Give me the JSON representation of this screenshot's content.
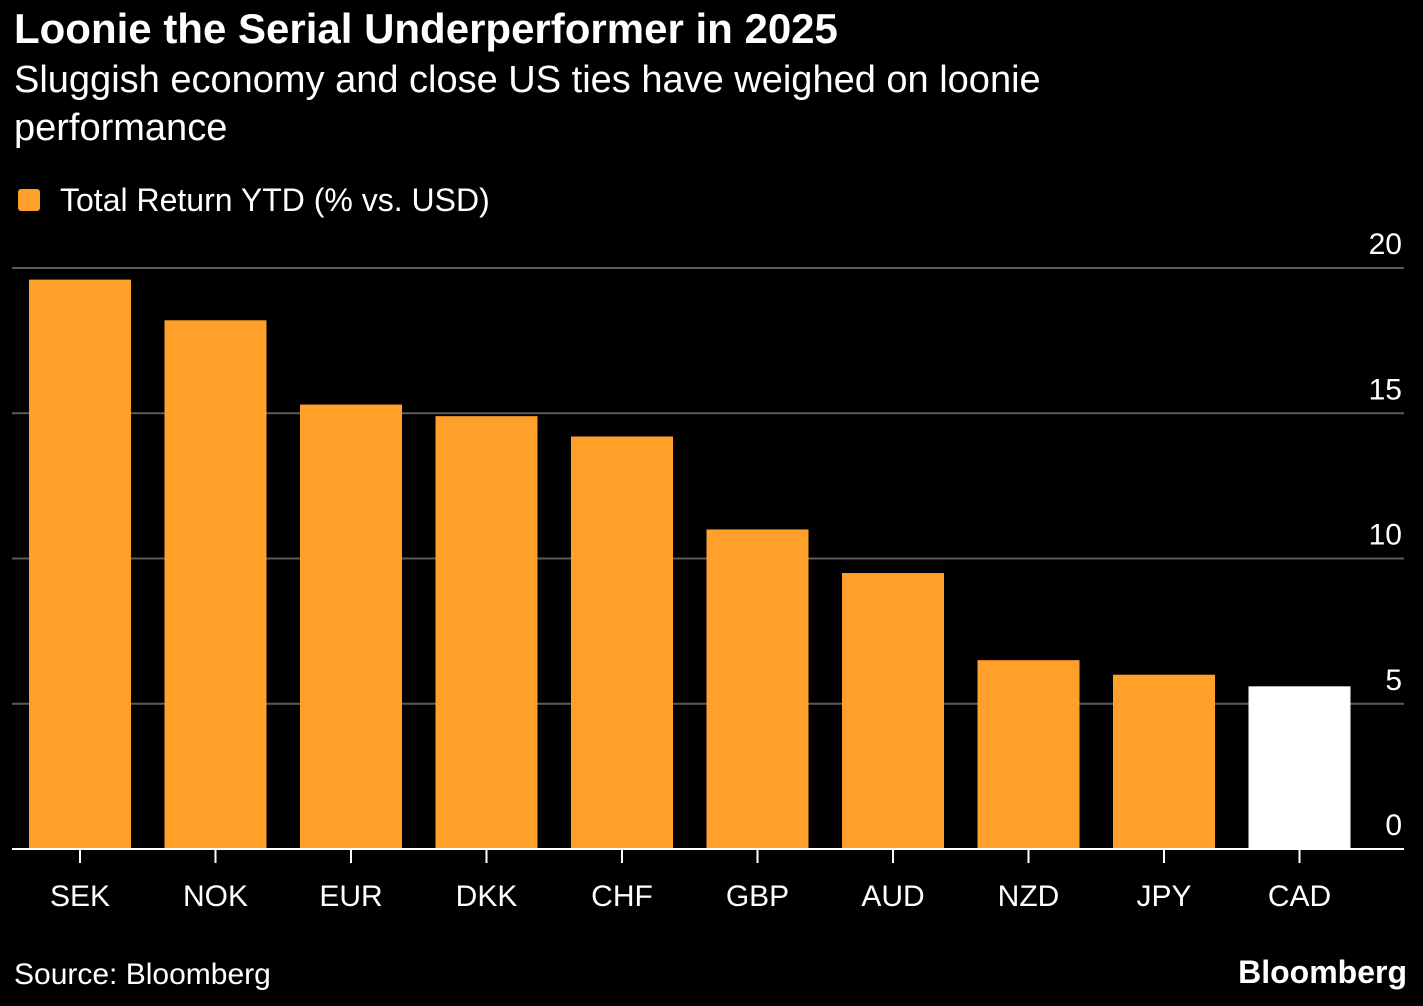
{
  "colors": {
    "background": "#000000",
    "text": "#ffffff",
    "accent": "#ffa02a",
    "highlight": "#ffffff",
    "gridline": "#5a5a5a",
    "axis": "#ffffff"
  },
  "source": "Source: Bloomberg",
  "brand": "Bloomberg",
  "chart_data": {
    "type": "bar",
    "title": "Loonie the Serial Underperformer in 2025",
    "subtitle": "Sluggish economy and close US ties have weighed on loonie performance",
    "legend": [
      {
        "label": "Total Return YTD (% vs. USD)",
        "color": "#ffa02a"
      }
    ],
    "legend_position": "top-left",
    "categories": [
      "SEK",
      "NOK",
      "EUR",
      "DKK",
      "CHF",
      "GBP",
      "AUD",
      "NZD",
      "JPY",
      "CAD"
    ],
    "values": [
      19.6,
      18.2,
      15.3,
      14.9,
      14.2,
      11.0,
      9.5,
      6.5,
      6.0,
      5.6
    ],
    "bar_colors": [
      "#ffa02a",
      "#ffa02a",
      "#ffa02a",
      "#ffa02a",
      "#ffa02a",
      "#ffa02a",
      "#ffa02a",
      "#ffa02a",
      "#ffa02a",
      "#ffffff"
    ],
    "highlighted_category": "CAD",
    "xlabel": "",
    "ylabel": "",
    "ylim": [
      0,
      20
    ],
    "yticks": [
      0,
      5,
      10,
      15,
      20
    ],
    "ytick_labels": [
      "0",
      "5",
      "10",
      "15",
      "20"
    ],
    "y_axis_side": "right",
    "grid": true
  }
}
